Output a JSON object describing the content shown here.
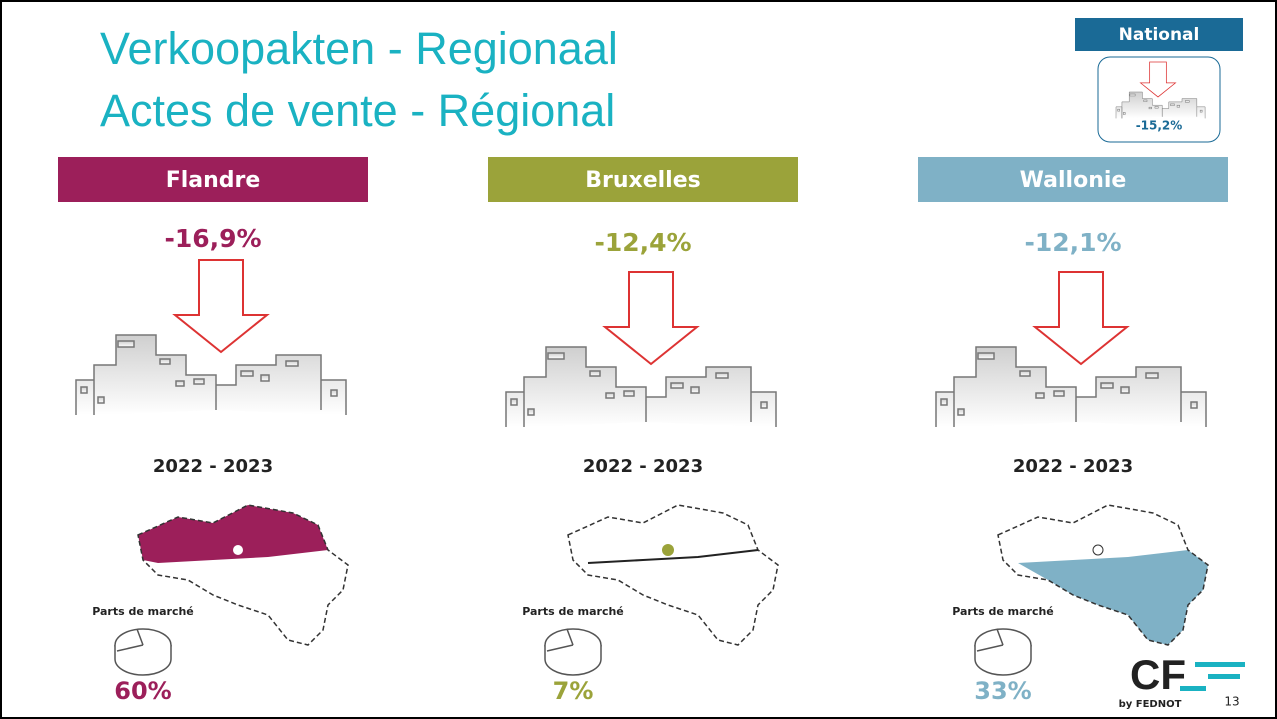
{
  "title": [
    "Verkoopakten - Regionaal",
    "Actes de vente - Régional"
  ],
  "national": {
    "label": "National",
    "change": "-15,2%"
  },
  "regions": [
    {
      "name": "Flandre",
      "change": "-16,9%",
      "period": "2022 - 2023",
      "share_label": "Parts de marché",
      "share": "60%"
    },
    {
      "name": "Bruxelles",
      "change": "-12,4%",
      "period": "2022 - 2023",
      "share_label": "Parts de marché",
      "share": "7%"
    },
    {
      "name": "Wallonie",
      "change": "-12,1%",
      "period": "2022 - 2023",
      "share_label": "Parts de marché",
      "share": "33%"
    }
  ],
  "logo": {
    "mark": "CF",
    "sub": "by FEDNOT"
  },
  "page_number": "13"
}
